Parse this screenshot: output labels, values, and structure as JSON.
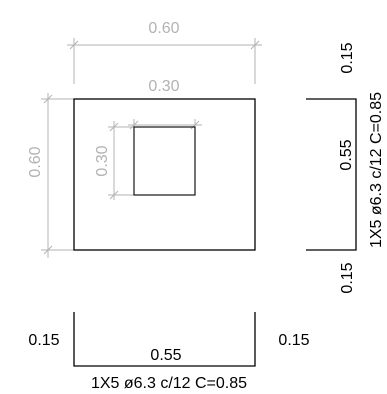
{
  "plan": {
    "overall_width": "0.60",
    "overall_height": "0.60",
    "opening_width": "0.30",
    "opening_height": "0.30"
  },
  "bar_vertical": {
    "top_hook": "0.15",
    "length": "0.55",
    "bottom_hook": "0.15",
    "spec": "1X5 ø6.3 c/12  C=0.85"
  },
  "bar_horizontal": {
    "left_hook": "0.15",
    "length": "0.55",
    "right_hook": "0.15",
    "spec": "1X5 ø6.3 c/12  C=0.85"
  },
  "colors": {
    "line": "#000000",
    "dimension": "#b3b3b3"
  }
}
